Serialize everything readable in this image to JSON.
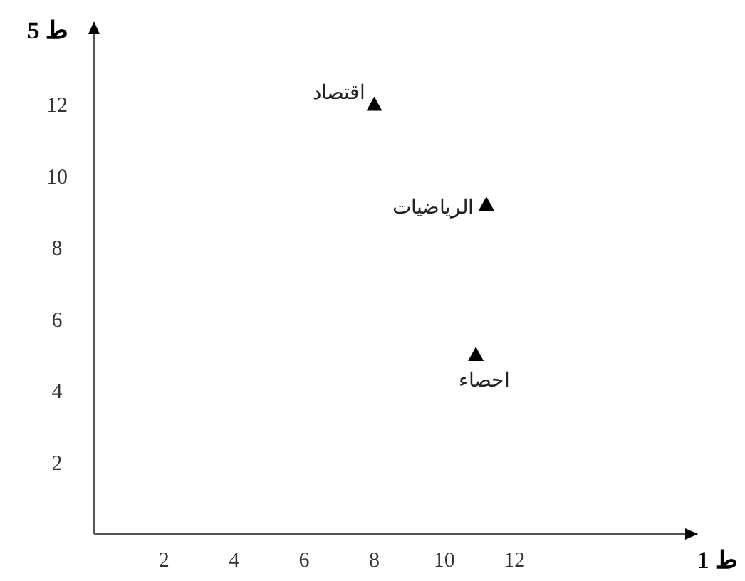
{
  "chart_data": {
    "type": "scatter",
    "xlabel": "ط 1",
    "ylabel": "ط 5",
    "x": [
      8,
      11.2,
      10.9
    ],
    "series": [
      {
        "color": "#000000",
        "values": [
          12,
          9.2,
          5
        ]
      }
    ],
    "marker": "triangle",
    "xlim": [
      0,
      17.2
    ],
    "ylim": [
      0,
      14.3
    ],
    "xticks": [
      2,
      4,
      6,
      8,
      10,
      12
    ],
    "yticks": [
      2,
      4,
      6,
      8,
      10,
      12
    ],
    "grid": false,
    "annotations": [
      {
        "text": "اقتصاد",
        "x": 8,
        "y": 12
      },
      {
        "text": "الرياضيات",
        "x": 11.2,
        "y": 9.2
      },
      {
        "text": "احصاء",
        "x": 10.9,
        "y": 5
      }
    ]
  }
}
